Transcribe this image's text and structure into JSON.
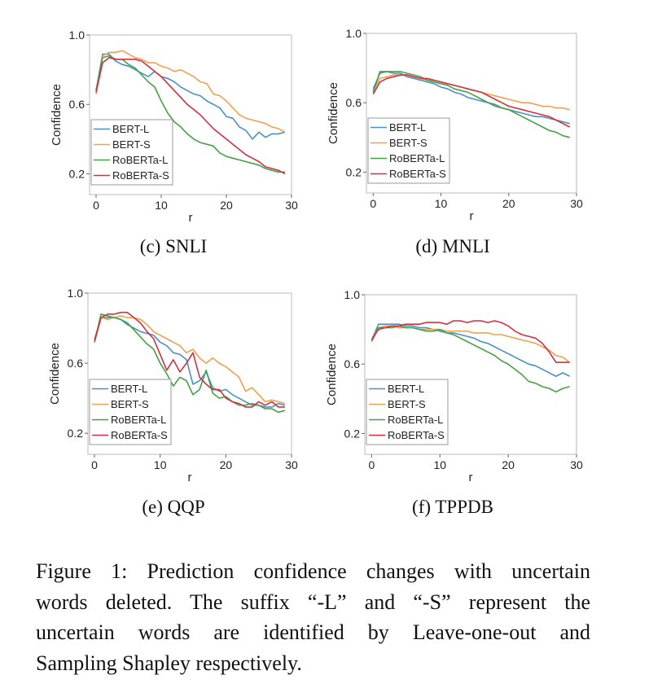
{
  "colors": {
    "BERT-L": "#4a90c8",
    "BERT-S": "#f0a050",
    "RoBERTa-L": "#45a045",
    "RoBERTa-S": "#d03040"
  },
  "chart_data": [
    {
      "type": "line",
      "subcaption": "(c) SNLI",
      "xlabel": "r",
      "ylabel": "Confidence",
      "xlim": [
        -1,
        30
      ],
      "ylim": [
        0.08,
        1.0
      ],
      "xticks": [
        "0",
        "10",
        "20",
        "30"
      ],
      "yticks": [
        "0.2",
        "0.6",
        "1.0"
      ],
      "legend_position": "lower-left",
      "x": [
        0,
        1,
        2,
        3,
        4,
        5,
        6,
        7,
        8,
        9,
        10,
        11,
        12,
        13,
        14,
        15,
        16,
        17,
        18,
        19,
        20,
        21,
        22,
        23,
        24,
        25,
        26,
        27,
        28,
        29
      ],
      "series": [
        {
          "name": "BERT-L",
          "values": [
            0.68,
            0.89,
            0.89,
            0.85,
            0.83,
            0.82,
            0.8,
            0.78,
            0.76,
            0.79,
            0.76,
            0.75,
            0.73,
            0.7,
            0.68,
            0.66,
            0.65,
            0.62,
            0.6,
            0.58,
            0.53,
            0.52,
            0.47,
            0.45,
            0.4,
            0.44,
            0.41,
            0.43,
            0.43,
            0.44
          ]
        },
        {
          "name": "BERT-S",
          "values": [
            0.66,
            0.88,
            0.9,
            0.9,
            0.91,
            0.89,
            0.87,
            0.86,
            0.84,
            0.84,
            0.82,
            0.81,
            0.79,
            0.8,
            0.78,
            0.76,
            0.73,
            0.72,
            0.66,
            0.65,
            0.62,
            0.58,
            0.54,
            0.52,
            0.51,
            0.5,
            0.49,
            0.47,
            0.46,
            0.44
          ]
        },
        {
          "name": "RoBERTa-L",
          "values": [
            0.68,
            0.87,
            0.88,
            0.86,
            0.86,
            0.83,
            0.81,
            0.77,
            0.73,
            0.7,
            0.62,
            0.55,
            0.5,
            0.47,
            0.43,
            0.4,
            0.38,
            0.37,
            0.36,
            0.32,
            0.3,
            0.29,
            0.28,
            0.27,
            0.26,
            0.25,
            0.23,
            0.22,
            0.21,
            0.21
          ]
        },
        {
          "name": "RoBERTa-S",
          "values": [
            0.67,
            0.84,
            0.87,
            0.86,
            0.86,
            0.86,
            0.86,
            0.85,
            0.82,
            0.79,
            0.76,
            0.72,
            0.68,
            0.64,
            0.6,
            0.57,
            0.54,
            0.5,
            0.46,
            0.43,
            0.4,
            0.37,
            0.34,
            0.31,
            0.29,
            0.27,
            0.24,
            0.23,
            0.22,
            0.2
          ]
        }
      ]
    },
    {
      "type": "line",
      "subcaption": "(d) MNLI",
      "xlabel": "r",
      "ylabel": "Confidence",
      "xlim": [
        -1,
        30
      ],
      "ylim": [
        0.08,
        1.0
      ],
      "xticks": [
        "0",
        "10",
        "20",
        "30"
      ],
      "yticks": [
        "0.2",
        "0.6",
        "1.0"
      ],
      "legend_position": "lower-left",
      "x": [
        0,
        1,
        2,
        3,
        4,
        5,
        6,
        7,
        8,
        9,
        10,
        11,
        12,
        13,
        14,
        15,
        16,
        17,
        18,
        19,
        20,
        21,
        22,
        23,
        24,
        25,
        26,
        27,
        28,
        29
      ],
      "series": [
        {
          "name": "BERT-L",
          "values": [
            0.68,
            0.77,
            0.78,
            0.77,
            0.77,
            0.75,
            0.74,
            0.73,
            0.72,
            0.71,
            0.69,
            0.68,
            0.66,
            0.65,
            0.63,
            0.62,
            0.61,
            0.6,
            0.58,
            0.57,
            0.56,
            0.55,
            0.54,
            0.53,
            0.52,
            0.52,
            0.51,
            0.5,
            0.49,
            0.48
          ]
        },
        {
          "name": "BERT-S",
          "values": [
            0.67,
            0.74,
            0.75,
            0.76,
            0.76,
            0.76,
            0.75,
            0.74,
            0.73,
            0.73,
            0.72,
            0.71,
            0.7,
            0.69,
            0.68,
            0.67,
            0.66,
            0.65,
            0.64,
            0.63,
            0.62,
            0.61,
            0.6,
            0.6,
            0.59,
            0.58,
            0.58,
            0.57,
            0.57,
            0.56
          ]
        },
        {
          "name": "RoBERTa-L",
          "values": [
            0.66,
            0.78,
            0.78,
            0.78,
            0.78,
            0.77,
            0.76,
            0.75,
            0.73,
            0.72,
            0.71,
            0.7,
            0.68,
            0.67,
            0.66,
            0.64,
            0.62,
            0.6,
            0.59,
            0.57,
            0.56,
            0.54,
            0.52,
            0.5,
            0.48,
            0.46,
            0.44,
            0.43,
            0.41,
            0.4
          ]
        },
        {
          "name": "RoBERTa-S",
          "values": [
            0.65,
            0.72,
            0.74,
            0.75,
            0.76,
            0.76,
            0.75,
            0.74,
            0.74,
            0.73,
            0.72,
            0.71,
            0.7,
            0.69,
            0.68,
            0.67,
            0.66,
            0.64,
            0.62,
            0.6,
            0.58,
            0.57,
            0.56,
            0.55,
            0.54,
            0.53,
            0.52,
            0.5,
            0.48,
            0.46
          ]
        }
      ]
    },
    {
      "type": "line",
      "subcaption": "(e) QQP",
      "xlabel": "r",
      "ylabel": "Confidence",
      "xlim": [
        -1,
        30
      ],
      "ylim": [
        0.08,
        1.0
      ],
      "xticks": [
        "0",
        "10",
        "20",
        "30"
      ],
      "yticks": [
        "0.2",
        "0.6",
        "1.0"
      ],
      "legend_position": "lower-left",
      "x": [
        0,
        1,
        2,
        3,
        4,
        5,
        6,
        7,
        8,
        9,
        10,
        11,
        12,
        13,
        14,
        15,
        16,
        17,
        18,
        19,
        20,
        21,
        22,
        23,
        24,
        25,
        26,
        27,
        28,
        29
      ],
      "series": [
        {
          "name": "BERT-L",
          "values": [
            0.72,
            0.86,
            0.86,
            0.86,
            0.85,
            0.82,
            0.8,
            0.78,
            0.77,
            0.76,
            0.72,
            0.7,
            0.66,
            0.65,
            0.62,
            0.48,
            0.5,
            0.55,
            0.46,
            0.44,
            0.45,
            0.42,
            0.4,
            0.38,
            0.36,
            0.36,
            0.35,
            0.35,
            0.37,
            0.36
          ]
        },
        {
          "name": "BERT-S",
          "values": [
            0.74,
            0.86,
            0.85,
            0.86,
            0.87,
            0.86,
            0.86,
            0.85,
            0.82,
            0.78,
            0.76,
            0.74,
            0.72,
            0.7,
            0.66,
            0.68,
            0.63,
            0.6,
            0.63,
            0.6,
            0.58,
            0.55,
            0.52,
            0.44,
            0.46,
            0.42,
            0.38,
            0.39,
            0.38,
            0.37
          ]
        },
        {
          "name": "RoBERTa-L",
          "values": [
            0.72,
            0.88,
            0.87,
            0.86,
            0.85,
            0.83,
            0.79,
            0.75,
            0.71,
            0.68,
            0.6,
            0.54,
            0.47,
            0.52,
            0.5,
            0.42,
            0.45,
            0.56,
            0.43,
            0.4,
            0.41,
            0.38,
            0.36,
            0.36,
            0.37,
            0.36,
            0.34,
            0.34,
            0.32,
            0.33
          ]
        },
        {
          "name": "RoBERTa-S",
          "values": [
            0.73,
            0.86,
            0.88,
            0.88,
            0.89,
            0.89,
            0.86,
            0.83,
            0.78,
            0.74,
            0.65,
            0.56,
            0.62,
            0.55,
            0.6,
            0.66,
            0.52,
            0.48,
            0.45,
            0.45,
            0.4,
            0.38,
            0.37,
            0.35,
            0.35,
            0.38,
            0.36,
            0.38,
            0.35,
            0.35
          ]
        }
      ]
    },
    {
      "type": "line",
      "subcaption": "(f) TPPDB",
      "xlabel": "r",
      "ylabel": "Confidence",
      "xlim": [
        -1,
        30
      ],
      "ylim": [
        0.08,
        1.0
      ],
      "xticks": [
        "0",
        "10",
        "20",
        "30"
      ],
      "yticks": [
        "0.2",
        "0.6",
        "1.0"
      ],
      "legend_position": "lower-left",
      "x": [
        0,
        1,
        2,
        3,
        4,
        5,
        6,
        7,
        8,
        9,
        10,
        11,
        12,
        13,
        14,
        15,
        16,
        17,
        18,
        19,
        20,
        21,
        22,
        23,
        24,
        25,
        26,
        27,
        28,
        29
      ],
      "series": [
        {
          "name": "BERT-L",
          "values": [
            0.74,
            0.83,
            0.83,
            0.83,
            0.83,
            0.82,
            0.82,
            0.81,
            0.81,
            0.8,
            0.79,
            0.78,
            0.78,
            0.77,
            0.76,
            0.75,
            0.73,
            0.72,
            0.7,
            0.68,
            0.66,
            0.64,
            0.62,
            0.6,
            0.59,
            0.57,
            0.55,
            0.53,
            0.55,
            0.53
          ]
        },
        {
          "name": "BERT-S",
          "values": [
            0.74,
            0.81,
            0.82,
            0.82,
            0.81,
            0.81,
            0.81,
            0.8,
            0.8,
            0.8,
            0.8,
            0.79,
            0.79,
            0.79,
            0.79,
            0.78,
            0.78,
            0.78,
            0.77,
            0.77,
            0.76,
            0.75,
            0.74,
            0.73,
            0.72,
            0.7,
            0.68,
            0.65,
            0.64,
            0.61
          ]
        },
        {
          "name": "RoBERTa-L",
          "values": [
            0.73,
            0.81,
            0.81,
            0.81,
            0.82,
            0.81,
            0.81,
            0.8,
            0.79,
            0.79,
            0.8,
            0.78,
            0.77,
            0.75,
            0.73,
            0.71,
            0.69,
            0.67,
            0.65,
            0.62,
            0.6,
            0.57,
            0.54,
            0.5,
            0.49,
            0.47,
            0.46,
            0.44,
            0.46,
            0.47
          ]
        },
        {
          "name": "RoBERTa-S",
          "values": [
            0.74,
            0.8,
            0.81,
            0.82,
            0.82,
            0.83,
            0.83,
            0.83,
            0.84,
            0.84,
            0.84,
            0.83,
            0.85,
            0.85,
            0.84,
            0.85,
            0.85,
            0.84,
            0.85,
            0.84,
            0.82,
            0.79,
            0.77,
            0.76,
            0.75,
            0.72,
            0.67,
            0.61,
            0.61,
            0.61
          ]
        }
      ]
    }
  ],
  "caption_lines": [
    "Figure 1: Prediction confidence changes with uncertain",
    "words deleted.  The suffix “-L” and “-S” represent the",
    "uncertain words are identified by Leave-one-out and",
    "Sampling Shapley respectively."
  ]
}
